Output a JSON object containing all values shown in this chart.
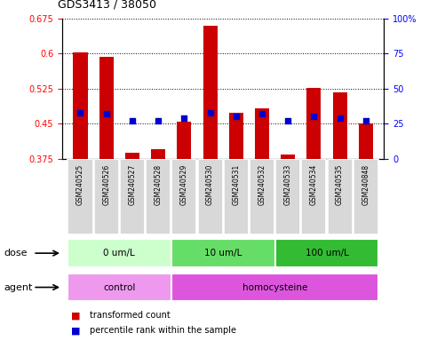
{
  "title": "GDS3413 / 38050",
  "samples": [
    "GSM240525",
    "GSM240526",
    "GSM240527",
    "GSM240528",
    "GSM240529",
    "GSM240530",
    "GSM240531",
    "GSM240532",
    "GSM240533",
    "GSM240534",
    "GSM240535",
    "GSM240848"
  ],
  "transformed_count": [
    0.602,
    0.593,
    0.388,
    0.395,
    0.455,
    0.66,
    0.473,
    0.483,
    0.383,
    0.527,
    0.518,
    0.45
  ],
  "percentile_rank_pct": [
    33,
    32,
    27,
    27,
    29,
    33,
    30,
    32,
    27,
    30,
    29,
    27
  ],
  "ylim_left": [
    0.375,
    0.675
  ],
  "ylim_right": [
    0,
    100
  ],
  "yticks_left": [
    0.375,
    0.45,
    0.525,
    0.6,
    0.675
  ],
  "ytick_labels_left": [
    "0.375",
    "0.45",
    "0.525",
    "0.6",
    "0.675"
  ],
  "yticks_right": [
    0,
    25,
    50,
    75,
    100
  ],
  "ytick_labels_right": [
    "0",
    "25",
    "50",
    "75",
    "100%"
  ],
  "bar_color": "#cc0000",
  "dot_color": "#0000cc",
  "bar_bottom": 0.375,
  "bar_width": 0.55,
  "dose_groups": [
    {
      "label": "0 um/L",
      "start": 0,
      "end": 4,
      "color": "#ccffcc"
    },
    {
      "label": "10 um/L",
      "start": 4,
      "end": 8,
      "color": "#66dd66"
    },
    {
      "label": "100 um/L",
      "start": 8,
      "end": 12,
      "color": "#33bb33"
    }
  ],
  "agent_groups": [
    {
      "label": "control",
      "start": 0,
      "end": 4,
      "color": "#ee99ee"
    },
    {
      "label": "homocysteine",
      "start": 4,
      "end": 12,
      "color": "#dd55dd"
    }
  ],
  "dose_label": "dose",
  "agent_label": "agent",
  "legend_items": [
    {
      "label": "transformed count",
      "color": "#cc0000"
    },
    {
      "label": "percentile rank within the sample",
      "color": "#0000cc"
    }
  ]
}
